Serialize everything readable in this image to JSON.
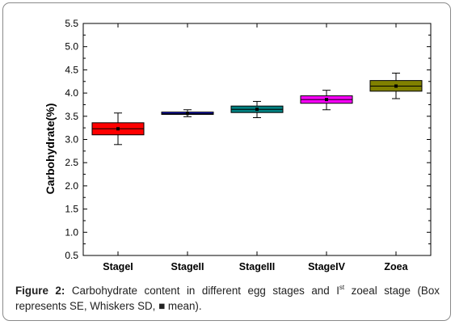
{
  "chart_data": {
    "type": "box",
    "title": "",
    "xlabel": "",
    "ylabel": "Carbohydrate(%)",
    "ylim": [
      0.5,
      5.5
    ],
    "yticks": [
      "0.5",
      "1.0",
      "1.5",
      "2.0",
      "2.5",
      "3.0",
      "3.5",
      "4.0",
      "4.5",
      "5.0",
      "5.5"
    ],
    "grid": false,
    "categories": [
      "StageI",
      "StageII",
      "StageIII",
      "StageIV",
      "Zoea"
    ],
    "boxes": [
      {
        "label": "StageI",
        "box_low": 3.1,
        "box_high": 3.36,
        "median": 3.23,
        "mean": 3.23,
        "whisker_low": 2.89,
        "whisker_high": 3.57,
        "color": "#ff0000"
      },
      {
        "label": "StageII",
        "box_low": 3.54,
        "box_high": 3.59,
        "median": 3.56,
        "mean": 3.56,
        "whisker_low": 3.49,
        "whisker_high": 3.64,
        "color": "#1a1aff"
      },
      {
        "label": "StageIII",
        "box_low": 3.58,
        "box_high": 3.72,
        "median": 3.65,
        "mean": 3.65,
        "whisker_low": 3.47,
        "whisker_high": 3.82,
        "color": "#008080"
      },
      {
        "label": "StageIV",
        "box_low": 3.78,
        "box_high": 3.94,
        "median": 3.86,
        "mean": 3.86,
        "whisker_low": 3.64,
        "whisker_high": 4.06,
        "color": "#ff00ff"
      },
      {
        "label": "Zoea",
        "box_low": 4.04,
        "box_high": 4.27,
        "median": 4.15,
        "mean": 4.15,
        "whisker_low": 3.88,
        "whisker_high": 4.43,
        "color": "#808000"
      }
    ]
  },
  "caption": {
    "figure_label": "Figure 2:",
    "text_before_sup": " Carbohydrate content in different egg stages and I",
    "sup": "st",
    "text_after_sup": " zoeal stage (Box represents SE, Whiskers SD, ",
    "mean_symbol": "■",
    "text_end": " mean)."
  }
}
